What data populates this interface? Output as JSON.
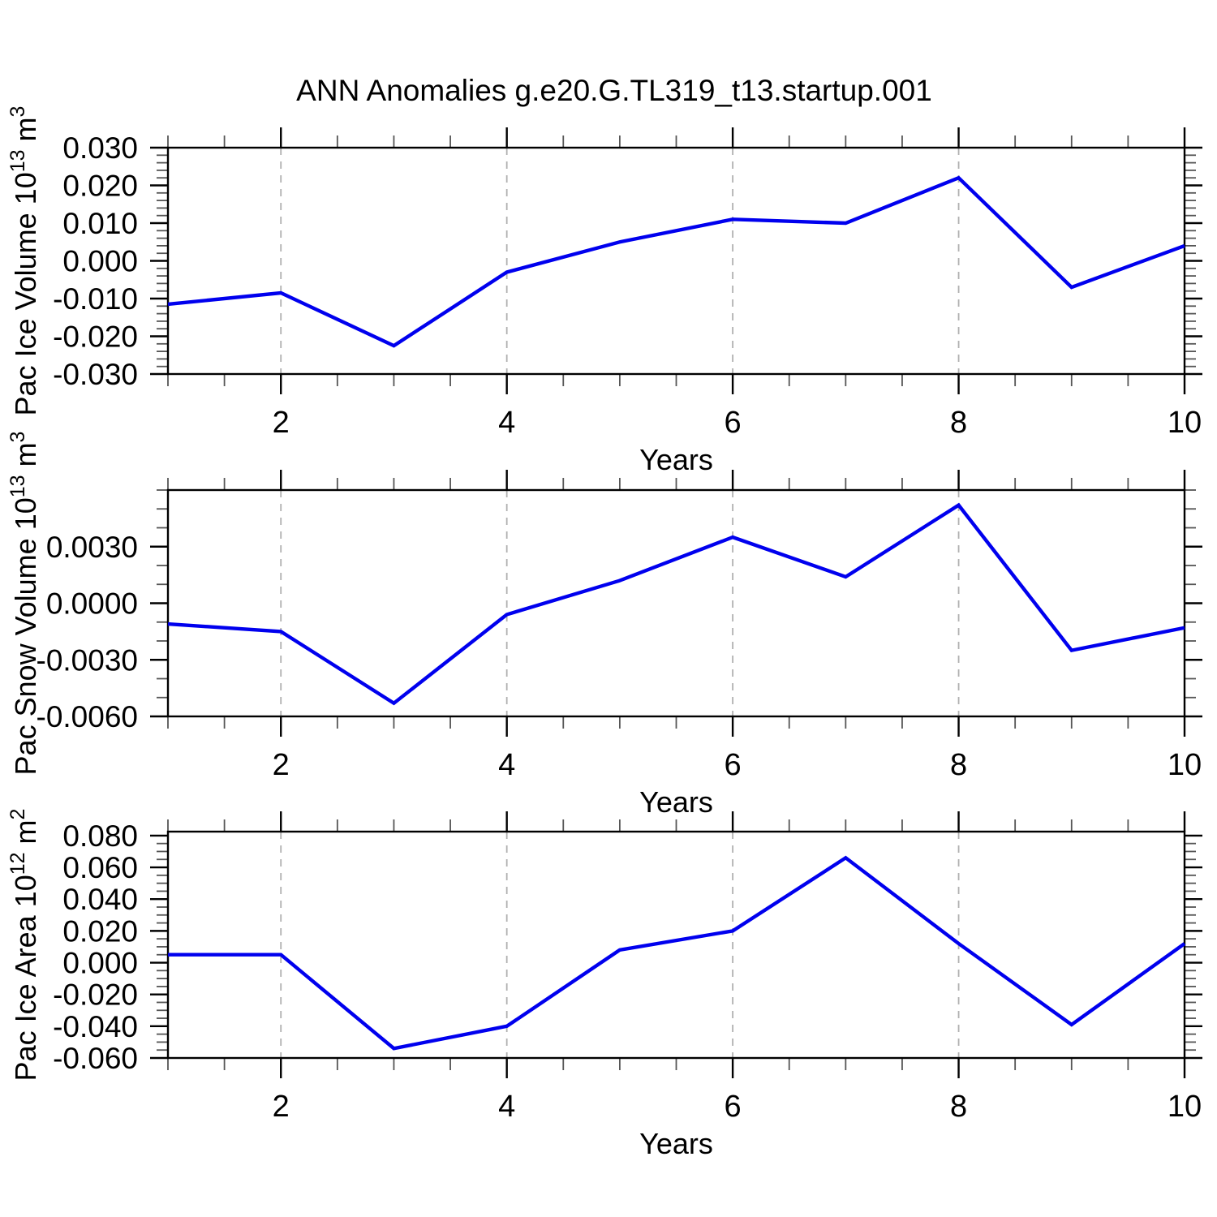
{
  "title": "ANN Anomalies g.e20.G.TL319_t13.startup.001",
  "colors": {
    "line": "#0000ee",
    "grid": "#b0b0b0",
    "axis": "#000000",
    "minor_tick": "#555555",
    "background": "#ffffff"
  },
  "xlabel": "Years",
  "chart_data": [
    {
      "type": "line",
      "name": "pac-ice-volume",
      "ylabel_text": "Pac Ice Volume 10^13 m^3",
      "ylabel_parts": [
        {
          "text": "Pac Ice Volume 10",
          "sup": false
        },
        {
          "text": "13",
          "sup": true
        },
        {
          "text": " m",
          "sup": false
        },
        {
          "text": "3",
          "sup": true
        }
      ],
      "xlabel": "Years",
      "x": [
        1,
        2,
        3,
        4,
        5,
        6,
        7,
        8,
        9,
        10
      ],
      "values": [
        -0.0115,
        -0.0085,
        -0.0225,
        -0.003,
        0.005,
        0.011,
        0.01,
        0.022,
        -0.007,
        0.004
      ],
      "xlim": [
        1,
        10
      ],
      "ylim": [
        -0.03,
        0.03
      ],
      "ytick_values": [
        0.03,
        0.02,
        0.01,
        0.0,
        -0.01,
        -0.02,
        -0.03
      ],
      "ytick_labels": [
        "0.030",
        "0.020",
        "0.010",
        "0.000",
        "-0.010",
        "-0.020",
        "-0.030"
      ],
      "yminor_step": 0.002,
      "xtick_values": [
        2,
        4,
        6,
        8,
        10
      ],
      "xtick_labels": [
        "2",
        "4",
        "6",
        "8",
        "10"
      ],
      "xminor_step": 0.5,
      "grid_x": [
        2,
        4,
        6,
        8
      ]
    },
    {
      "type": "line",
      "name": "pac-snow-volume",
      "ylabel_text": "Pac Snow Volume 10^13 m^3",
      "ylabel_parts": [
        {
          "text": "Pac Snow Volume 10",
          "sup": false
        },
        {
          "text": "13",
          "sup": true
        },
        {
          "text": " m",
          "sup": false
        },
        {
          "text": "3",
          "sup": true
        }
      ],
      "xlabel": "Years",
      "x": [
        1,
        2,
        3,
        4,
        5,
        6,
        7,
        8,
        9,
        10
      ],
      "values": [
        -0.0011,
        -0.0015,
        -0.0053,
        -0.0006,
        0.0012,
        0.0035,
        0.0014,
        0.0052,
        -0.0025,
        -0.0013
      ],
      "xlim": [
        1,
        10
      ],
      "ylim": [
        -0.006,
        0.006
      ],
      "ytick_values": [
        0.003,
        0.0,
        -0.003,
        -0.006
      ],
      "ytick_labels": [
        "0.0030",
        "0.0000",
        "-0.0030",
        "-0.0060"
      ],
      "yminor_step": 0.001,
      "xtick_values": [
        2,
        4,
        6,
        8,
        10
      ],
      "xtick_labels": [
        "2",
        "4",
        "6",
        "8",
        "10"
      ],
      "xminor_step": 0.5,
      "grid_x": [
        2,
        4,
        6,
        8
      ]
    },
    {
      "type": "line",
      "name": "pac-ice-area",
      "ylabel_text": "Pac Ice Area 10^12 m^2",
      "ylabel_parts": [
        {
          "text": "Pac Ice Area 10",
          "sup": false
        },
        {
          "text": "12",
          "sup": true
        },
        {
          "text": " m",
          "sup": false
        },
        {
          "text": "2",
          "sup": true
        }
      ],
      "xlabel": "Years",
      "x": [
        1,
        2,
        3,
        4,
        5,
        6,
        7,
        8,
        9,
        10
      ],
      "values": [
        0.005,
        0.005,
        -0.054,
        -0.04,
        0.008,
        0.02,
        0.066,
        0.012,
        -0.039,
        0.012
      ],
      "xlim": [
        1,
        10
      ],
      "ylim": [
        -0.06,
        0.0825
      ],
      "ytick_values": [
        0.08,
        0.06,
        0.04,
        0.02,
        0.0,
        -0.02,
        -0.04,
        -0.06
      ],
      "ytick_labels": [
        "0.080",
        "0.060",
        "0.040",
        "0.020",
        "0.000",
        "-0.020",
        "-0.040",
        "-0.060"
      ],
      "yminor_step": 0.005,
      "xtick_values": [
        2,
        4,
        6,
        8,
        10
      ],
      "xtick_labels": [
        "2",
        "4",
        "6",
        "8",
        "10"
      ],
      "xminor_step": 0.5,
      "grid_x": [
        2,
        4,
        6,
        8
      ]
    }
  ]
}
